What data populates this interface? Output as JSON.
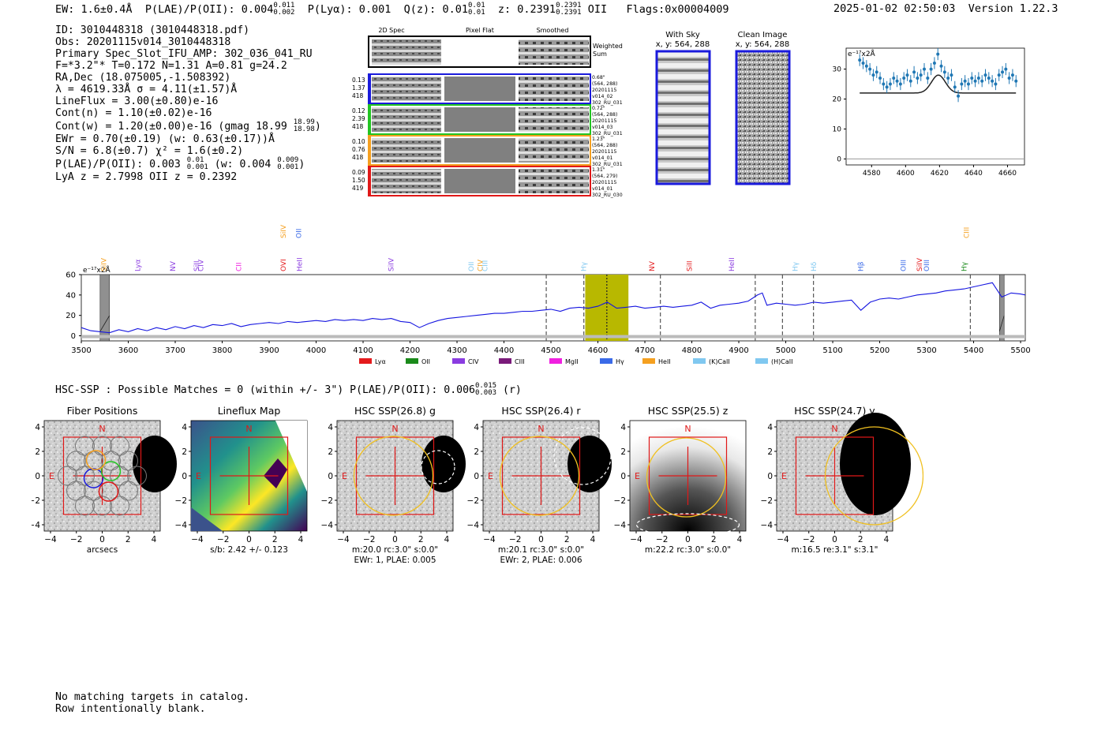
{
  "header": {
    "ew": "EW: 1.6±0.4Å",
    "plae_label": "P(LAE)/P(OII): 0.004",
    "plae_hi": "0.011",
    "plae_lo": "0.002",
    "plya": "P(Lyα): 0.001",
    "qz_label": "Q(z): 0.01",
    "qz_hi": "0.01",
    "qz_lo": "0.01",
    "z_label": "z: 0.2391",
    "z_hi": "0.2391",
    "z_lo": "0.2391",
    "z_line": "OII",
    "flags": "Flags:0x00004009",
    "datetime": "2025-01-02 02:50:03",
    "version": "Version 1.22.3"
  },
  "info": {
    "id": "ID: 3010448318 (3010448318.pdf)",
    "obs": "Obs: 20201115v014_3010448318",
    "primary": "Primary Spec_Slot_IFU_AMP: 302_036_041_RU",
    "fwhm": "F=*3.2\"*  T=0.172  N=1.31  A=0.81  g=24.2",
    "radec": "RA,Dec (18.075005,-1.508392)",
    "lambda": "λ = 4619.33Å  σ = 4.11(±1.57)Å",
    "lineflux": "LineFlux = 3.00(±0.80)e-16",
    "contn": "Cont(n) = 1.10(±0.02)e-16",
    "contw": "Cont(w) = 1.20(±0.00)e-16 (gmag 18.99",
    "contw_hi": "18.99",
    "contw_lo": "18.98",
    "contw_end": ")",
    "ewr": "EWr = 0.70(±0.19) (w: 0.63(±0.17))Å",
    "sn": "S/N = 6.8(±0.7)  χ² = 1.6(±0.2)",
    "plae": "P(LAE)/P(OII): 0.003",
    "plae_hi": "0.01",
    "plae_lo": "0.001",
    "plae_w": "(w: 0.004",
    "plae_w_hi": "0.009",
    "plae_w_lo": "0.001",
    "plae_w_end": ")",
    "lya_z": "LyA z = 2.7998   OII z = 0.2392"
  },
  "cutouts": {
    "headers": [
      "2D Spec",
      "Pixel Flat",
      "Smoothed"
    ],
    "weighted_label_1": "Weighted",
    "weighted_label_2": "Sum",
    "rows": [
      {
        "left": [
          "0.13",
          "1.37",
          "418"
        ],
        "right": [
          "0.68\"",
          "(564, 288)",
          "20201115",
          "v014_02",
          "302_RU_031"
        ],
        "color": "#1a1adc"
      },
      {
        "left": [
          "0.12",
          "2.39",
          "418"
        ],
        "right": [
          "0.72\"",
          "(564, 288)",
          "20201115",
          "v014_03",
          "302_RU_031"
        ],
        "color": "#22c422"
      },
      {
        "left": [
          "0.10",
          "0.76",
          "418"
        ],
        "right": [
          "1.23\"",
          "(564, 288)",
          "20201115",
          "v014_01",
          "302_RU_031"
        ],
        "color": "#f5a020"
      },
      {
        "left": [
          "0.09",
          "1.50",
          "419"
        ],
        "right": [
          "1.31\"",
          "(564, 279)",
          "20201115",
          "v014_01",
          "302_RU_030"
        ],
        "color": "#e01818"
      }
    ]
  },
  "sky": {
    "with_sky_title": "With Sky",
    "with_sky_coords": "x, y: 564, 288",
    "clean_title": "Clean Image",
    "clean_coords": "x, y: 564, 288"
  },
  "zoom_chart": {
    "unit_label": "e⁻¹⁷x2Å",
    "yticks": [
      "0",
      "10",
      "20",
      "30"
    ],
    "xticks": [
      "4580",
      "4600",
      "4620",
      "4640",
      "4660"
    ]
  },
  "full_spectrum": {
    "unit_label": "e⁻¹⁷x2Å",
    "yticks": [
      "0",
      "20",
      "40",
      "60"
    ],
    "xticks": [
      "3500",
      "3600",
      "3700",
      "3800",
      "3900",
      "4000",
      "4100",
      "4200",
      "4300",
      "4400",
      "4500",
      "4600",
      "4700",
      "4800",
      "4900",
      "5000",
      "5100",
      "5200",
      "5300",
      "5400",
      "5500"
    ],
    "legend": [
      {
        "label": "Lyα",
        "color": "#e41a1c"
      },
      {
        "label": "OII",
        "color": "#1a8a1a"
      },
      {
        "label": "CIV",
        "color": "#8a3ce0"
      },
      {
        "label": "CIII",
        "color": "#7a1a7a"
      },
      {
        "label": "MgII",
        "color": "#f020e0"
      },
      {
        "label": "Hγ",
        "color": "#3a6ae8"
      },
      {
        "label": "HeII",
        "color": "#f5a020"
      },
      {
        "label": "(K)CaII",
        "color": "#80c8f0"
      },
      {
        "label": "(H)CaII",
        "color": "#80c8f0"
      }
    ],
    "line_labels": [
      {
        "text": "SiIV",
        "x": 3553,
        "color": "#f5a020",
        "row": 2
      },
      {
        "text": "Lyα",
        "x": 3625,
        "color": "#8a3ce0",
        "row": 2
      },
      {
        "text": "NV",
        "x": 3700,
        "color": "#8a3ce0",
        "row": 2
      },
      {
        "text": "SiII",
        "x": 3750,
        "color": "#8a3ce0",
        "row": 2
      },
      {
        "text": "CIV",
        "x": 3760,
        "color": "#8a3ce0",
        "row": 2
      },
      {
        "text": "CII",
        "x": 3840,
        "color": "#f020e0",
        "row": 2
      },
      {
        "text": "SiIV",
        "x": 3935,
        "color": "#f5a020",
        "row": 1
      },
      {
        "text": "OVI",
        "x": 3935,
        "color": "#e41a1c",
        "row": 2
      },
      {
        "text": "OII",
        "x": 3968,
        "color": "#3a6ae8",
        "row": 1
      },
      {
        "text": "HeII",
        "x": 3970,
        "color": "#8a3ce0",
        "row": 2
      },
      {
        "text": "SiIV",
        "x": 4165,
        "color": "#8a3ce0",
        "row": 2
      },
      {
        "text": "OII",
        "x": 4335,
        "color": "#80c8f0",
        "row": 2
      },
      {
        "text": "CIV",
        "x": 4355,
        "color": "#f5a020",
        "row": 2
      },
      {
        "text": "CIII",
        "x": 4365,
        "color": "#80c8f0",
        "row": 2
      },
      {
        "text": "Hγ",
        "x": 4575,
        "color": "#80c8f0",
        "row": 2
      },
      {
        "text": "NV",
        "x": 4720,
        "color": "#e41a1c",
        "row": 2
      },
      {
        "text": "SiII",
        "x": 4800,
        "color": "#e41a1c",
        "row": 2
      },
      {
        "text": "HeII",
        "x": 4890,
        "color": "#8a3ce0",
        "row": 2
      },
      {
        "text": "Hγ",
        "x": 5025,
        "color": "#80c8f0",
        "row": 2
      },
      {
        "text": "Hδ",
        "x": 5065,
        "color": "#80c8f0",
        "row": 2
      },
      {
        "text": "Hβ",
        "x": 5165,
        "color": "#3a6ae8",
        "row": 2
      },
      {
        "text": "OIII",
        "x": 5255,
        "color": "#3a6ae8",
        "row": 2
      },
      {
        "text": "SiIV",
        "x": 5290,
        "color": "#e41a1c",
        "row": 2
      },
      {
        "text": "OIII",
        "x": 5305,
        "color": "#3a6ae8",
        "row": 2
      },
      {
        "text": "CIII",
        "x": 5390,
        "color": "#f5a020",
        "row": 1
      },
      {
        "text": "Hγ",
        "x": 5385,
        "color": "#1a8a1a",
        "row": 2
      }
    ]
  },
  "chart_data": [
    {
      "type": "scatter",
      "xlim": [
        4565,
        4670
      ],
      "ylim": [
        -2,
        37
      ],
      "series": [
        {
          "x": [
            4573,
            4575,
            4577,
            4579,
            4581,
            4583,
            4585,
            4587,
            4589,
            4591,
            4593,
            4595,
            4597,
            4599,
            4601,
            4603,
            4605,
            4607,
            4609,
            4611,
            4613,
            4615,
            4617,
            4619,
            4621,
            4623,
            4625,
            4627,
            4629,
            4631,
            4633,
            4635,
            4637,
            4639,
            4641,
            4643,
            4645,
            4647,
            4649,
            4651,
            4653,
            4655,
            4657,
            4659,
            4661,
            4663,
            4665
          ],
          "y": [
            33,
            32,
            31,
            30,
            28,
            29,
            27,
            25,
            24,
            25,
            27,
            26,
            25,
            27,
            28,
            26,
            29,
            27,
            28,
            30,
            27,
            30,
            32,
            35,
            31,
            29,
            27,
            28,
            24,
            21,
            25,
            26,
            25,
            27,
            26,
            27,
            26,
            28,
            27,
            26,
            25,
            28,
            29,
            30,
            27,
            28,
            26
          ],
          "yerr": [
            2,
            2,
            2,
            2,
            2,
            2,
            2,
            2,
            2,
            2,
            2,
            2,
            2,
            2,
            2,
            2,
            2,
            2,
            2,
            2,
            2,
            2,
            2,
            2,
            2,
            2,
            2,
            2,
            2,
            2,
            2,
            2,
            2,
            2,
            2,
            2,
            2,
            2,
            2,
            2,
            2,
            2,
            2,
            2,
            2,
            2,
            2
          ]
        }
      ],
      "fit": {
        "center": 4619.33,
        "sigma": 4.11,
        "continuum": 22,
        "amplitude": 6
      }
    },
    {
      "type": "line",
      "xlim": [
        3500,
        5510
      ],
      "ylim": [
        -5,
        60
      ],
      "x": [
        3500,
        3520,
        3540,
        3560,
        3580,
        3600,
        3620,
        3640,
        3660,
        3680,
        3700,
        3720,
        3740,
        3760,
        3780,
        3800,
        3820,
        3840,
        3860,
        3880,
        3900,
        3920,
        3940,
        3960,
        3980,
        4000,
        4020,
        4040,
        4060,
        4080,
        4100,
        4120,
        4140,
        4160,
        4180,
        4200,
        4220,
        4240,
        4260,
        4280,
        4300,
        4320,
        4340,
        4360,
        4380,
        4400,
        4420,
        4440,
        4460,
        4480,
        4500,
        4520,
        4540,
        4560,
        4580,
        4600,
        4620,
        4640,
        4660,
        4680,
        4700,
        4720,
        4740,
        4760,
        4780,
        4800,
        4820,
        4840,
        4860,
        4880,
        4900,
        4920,
        4940,
        4950,
        4960,
        4980,
        5000,
        5020,
        5040,
        5060,
        5080,
        5100,
        5120,
        5140,
        5160,
        5180,
        5200,
        5220,
        5240,
        5260,
        5280,
        5300,
        5320,
        5340,
        5360,
        5380,
        5400,
        5420,
        5440,
        5460,
        5480,
        5500,
        5510
      ],
      "y": [
        8,
        5,
        4,
        3,
        6,
        4,
        7,
        5,
        8,
        6,
        9,
        7,
        10,
        8,
        11,
        10,
        12,
        9,
        11,
        12,
        13,
        12,
        14,
        13,
        14,
        15,
        14,
        16,
        15,
        16,
        15,
        17,
        16,
        17,
        14,
        13,
        8,
        12,
        15,
        17,
        18,
        19,
        20,
        21,
        22,
        22,
        23,
        24,
        24,
        25,
        26,
        24,
        27,
        28,
        27,
        29,
        33,
        27,
        28,
        29,
        27,
        28,
        29,
        28,
        29,
        30,
        33,
        27,
        30,
        31,
        32,
        34,
        40,
        42,
        30,
        32,
        31,
        30,
        31,
        33,
        32,
        33,
        34,
        35,
        25,
        33,
        36,
        37,
        36,
        38,
        40,
        41,
        42,
        44,
        45,
        46,
        48,
        50,
        52,
        38,
        42,
        41,
        40
      ]
    }
  ],
  "hsc": {
    "heading": "HSC-SSP : Possible Matches = 0 (within +/- 3\")  P(LAE)/P(OII): 0.006",
    "heading_hi": "0.015",
    "heading_lo": "0.003",
    "heading_end": "(r)",
    "panels": [
      {
        "title": "Fiber Positions",
        "caption": "arcsecs",
        "caption2": ""
      },
      {
        "title": "Lineflux Map",
        "caption": "s/b: 2.42 +/- 0.123",
        "caption2": ""
      },
      {
        "title": "HSC SSP(26.8) g",
        "caption": "m:20.0 rc:3.0\"  s:0.0\"",
        "caption2": "EWr: 1, PLAE: 0.005"
      },
      {
        "title": "HSC SSP(26.4) r",
        "caption": "m:20.1 rc:3.0\"  s:0.0\"",
        "caption2": "EWr: 2, PLAE: 0.006"
      },
      {
        "title": "HSC SSP(25.5) z",
        "caption": "m:22.2 rc:3.0\"  s:0.0\"",
        "caption2": ""
      },
      {
        "title": "HSC SSP(24.7) y",
        "caption": "m:16.5  re:3.1\"  s:3.1\"",
        "caption2": ""
      }
    ],
    "ticks": [
      "−4",
      "−2",
      "0",
      "2",
      "4"
    ],
    "north": "N",
    "east": "E"
  },
  "footer": {
    "line1": "No matching targets in catalog.",
    "line2": "Row intentionally blank."
  }
}
